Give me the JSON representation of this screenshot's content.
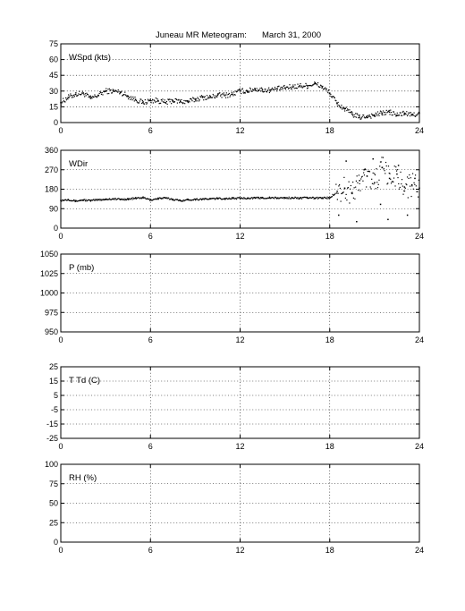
{
  "title": {
    "station": "Juneau MR Meteogram:",
    "date": "March 31, 2000"
  },
  "chart_data": [
    {
      "type": "scatter",
      "title": "WSpd (kts)",
      "xlim": [
        0,
        24
      ],
      "ylim": [
        0,
        75
      ],
      "xticks": [
        0,
        6,
        12,
        18,
        24
      ],
      "yticks": [
        0,
        15,
        30,
        45,
        60,
        75
      ],
      "grid": true,
      "series": [
        {
          "x": [
            0,
            0.5,
            1,
            1.5,
            2,
            2.5,
            3,
            3.5,
            4,
            4.5,
            5,
            5.5,
            6,
            6.5,
            7,
            7.5,
            8,
            8.5,
            9,
            9.5,
            10,
            10.5,
            11,
            11.5,
            12,
            12.5,
            13,
            13.5,
            14,
            14.5,
            15,
            15.5,
            16,
            16.5,
            17,
            17.5,
            18,
            18.5,
            19,
            19.5,
            20,
            20.5,
            21,
            21.5,
            22,
            22.5,
            23,
            23.5,
            24
          ],
          "y": [
            19,
            24,
            27,
            28,
            23,
            26,
            30,
            30,
            29,
            25,
            22,
            19,
            21,
            21,
            19,
            21,
            20,
            20,
            22,
            24,
            24,
            26,
            26,
            27,
            30,
            30,
            32,
            31,
            31,
            32,
            33,
            34,
            35,
            35,
            37,
            34,
            28,
            18,
            13,
            8,
            5,
            6,
            7,
            9,
            10,
            7,
            9,
            7,
            9
          ]
        }
      ]
    },
    {
      "type": "scatter",
      "title": "WDir",
      "xlim": [
        0,
        24
      ],
      "ylim": [
        0,
        360
      ],
      "xticks": [
        0,
        6,
        12,
        18,
        24
      ],
      "yticks": [
        0,
        90,
        180,
        270,
        360
      ],
      "grid": true,
      "series": [
        {
          "x": [
            0,
            0.5,
            1,
            1.5,
            2,
            2.5,
            3,
            3.5,
            4,
            4.5,
            5,
            5.5,
            6,
            6.5,
            7,
            7.5,
            8,
            8.5,
            9,
            9.5,
            10,
            10.5,
            11,
            11.5,
            12,
            12.5,
            13,
            13.5,
            14,
            14.5,
            15,
            15.5,
            16,
            16.5,
            17,
            17.5,
            18,
            18.5,
            19,
            19.5,
            20,
            20.5,
            21,
            21.5,
            22,
            22.5,
            23,
            23.5,
            24
          ],
          "y": [
            128,
            132,
            125,
            130,
            127,
            131,
            133,
            135,
            133,
            134,
            138,
            141,
            130,
            137,
            139,
            133,
            127,
            131,
            133,
            134,
            135,
            137,
            136,
            138,
            138,
            139,
            139,
            140,
            140,
            139,
            140,
            140,
            139,
            140,
            139,
            140,
            140,
            170,
            185,
            160,
            220,
            240,
            210,
            280,
            230,
            250,
            190,
            200,
            185
          ]
        },
        {
          "x": [
            18.6,
            19.1,
            19.8,
            20.3,
            20.9,
            21.4,
            21.9,
            22.6,
            23.2,
            23.7
          ],
          "y": [
            60,
            310,
            30,
            270,
            320,
            110,
            40,
            290,
            60,
            230
          ]
        }
      ]
    },
    {
      "type": "scatter",
      "title": "P (mb)",
      "xlim": [
        0,
        24
      ],
      "ylim": [
        950,
        1050
      ],
      "xticks": [
        0,
        6,
        12,
        18,
        24
      ],
      "yticks": [
        950,
        975,
        1000,
        1025,
        1050
      ],
      "grid": true,
      "series": []
    },
    {
      "type": "scatter",
      "title": "T Td (C)",
      "xlim": [
        0,
        24
      ],
      "ylim": [
        -25,
        25
      ],
      "xticks": [
        0,
        6,
        12,
        18,
        24
      ],
      "yticks": [
        -25,
        -15,
        -5,
        5,
        15,
        25
      ],
      "grid": true,
      "series": []
    },
    {
      "type": "scatter",
      "title": "RH (%)",
      "xlim": [
        0,
        24
      ],
      "ylim": [
        0,
        100
      ],
      "xticks": [
        0,
        6,
        12,
        18,
        24
      ],
      "yticks": [
        0,
        25,
        50,
        75,
        100
      ],
      "grid": true,
      "series": []
    }
  ]
}
